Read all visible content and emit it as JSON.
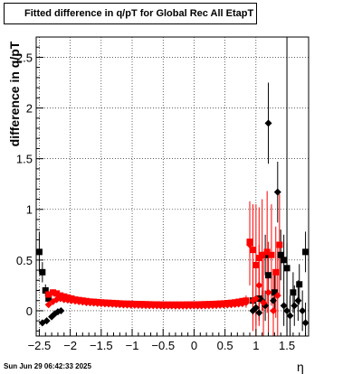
{
  "chart_data": {
    "type": "scatter",
    "title": "Fitted difference in q/pT for Global Rec All EtapT",
    "xlabel": "η",
    "ylabel": "difference in q/pT",
    "xlim": [
      -2.55,
      1.85
    ],
    "ylim": [
      -0.25,
      2.7
    ],
    "xticks": [
      "−2.5",
      "−2",
      "−1.5",
      "−1",
      "−0.5",
      "0",
      "0.5",
      "1",
      "1.5"
    ],
    "xtick_values": [
      -2.5,
      -2,
      -1.5,
      -1,
      -0.5,
      0,
      0.5,
      1,
      1.5
    ],
    "yticks": [
      "0",
      "0.5",
      "1",
      "1.5",
      "2",
      "2.5"
    ],
    "ytick_values": [
      0,
      0.5,
      1,
      1.5,
      2,
      2.5
    ],
    "grid": true,
    "reference_line_x": 1.5,
    "series": [
      {
        "marker": "square",
        "color": "#000000",
        "points": [
          [
            -2.5,
            0.58,
            0.2
          ],
          [
            -2.45,
            0.38,
            0.1
          ],
          [
            -2.4,
            0.2,
            0.06
          ],
          [
            -2.35,
            0.12,
            0.04
          ],
          [
            0.95,
            0.1,
            0.1
          ],
          [
            1.05,
            0.12,
            0.15
          ],
          [
            1.15,
            0.55,
            0.2
          ],
          [
            1.2,
            0.35,
            0.2
          ],
          [
            1.3,
            0.18,
            0.2
          ],
          [
            1.4,
            0.55,
            0.25
          ],
          [
            1.45,
            0.5,
            0.25
          ],
          [
            1.5,
            0.42,
            0.25
          ],
          [
            1.6,
            0.18,
            0.2
          ],
          [
            1.7,
            0.26,
            0.2
          ],
          [
            1.8,
            0.58,
            0.2
          ]
        ]
      },
      {
        "marker": "diamond",
        "color": "#000000",
        "points": [
          [
            -2.45,
            -0.12,
            0.03
          ],
          [
            -2.38,
            -0.1,
            0.03
          ],
          [
            -2.3,
            -0.06,
            0.03
          ],
          [
            -2.25,
            -0.03,
            0.02
          ],
          [
            -2.2,
            -0.01,
            0.02
          ],
          [
            -2.15,
            0.0,
            0.02
          ],
          [
            0.95,
            0.0,
            0.05
          ],
          [
            1.0,
            0.03,
            0.08
          ],
          [
            1.05,
            -0.02,
            0.08
          ],
          [
            1.1,
            0.1,
            0.1
          ],
          [
            1.15,
            0.05,
            0.15
          ],
          [
            1.2,
            1.85,
            0.4
          ],
          [
            1.28,
            0.1,
            0.2
          ],
          [
            1.35,
            1.17,
            0.3
          ],
          [
            1.45,
            0.05,
            0.2
          ],
          [
            1.5,
            0.0,
            0.2
          ],
          [
            1.55,
            -0.05,
            0.2
          ],
          [
            1.62,
            0.05,
            0.2
          ],
          [
            1.68,
            0.1,
            0.2
          ],
          [
            1.75,
            0.0,
            0.2
          ],
          [
            1.8,
            -0.12,
            0.2
          ]
        ]
      },
      {
        "marker": "square",
        "color": "#ff0000",
        "points": [
          [
            -2.35,
            0.16,
            0.03
          ],
          [
            -2.28,
            0.18,
            0.03
          ],
          [
            -2.22,
            0.17,
            0.03
          ],
          [
            -2.16,
            0.15,
            0.02
          ],
          [
            -2.1,
            0.14,
            0.02
          ],
          [
            -2.04,
            0.13,
            0.02
          ],
          [
            -1.98,
            0.12,
            0.02
          ],
          [
            -1.92,
            0.11,
            0.02
          ],
          [
            -1.86,
            0.105,
            0.02
          ],
          [
            -1.8,
            0.1,
            0.02
          ],
          [
            -1.74,
            0.095,
            0.02
          ],
          [
            -1.68,
            0.09,
            0.02
          ],
          [
            -1.62,
            0.088,
            0.02
          ],
          [
            -1.56,
            0.085,
            0.02
          ],
          [
            -1.5,
            0.082,
            0.02
          ],
          [
            -1.44,
            0.08,
            0.02
          ],
          [
            -1.38,
            0.078,
            0.02
          ],
          [
            -1.32,
            0.076,
            0.02
          ],
          [
            -1.26,
            0.074,
            0.02
          ],
          [
            -1.2,
            0.072,
            0.02
          ],
          [
            -1.14,
            0.07,
            0.02
          ],
          [
            -1.08,
            0.069,
            0.02
          ],
          [
            -1.02,
            0.068,
            0.02
          ],
          [
            -0.96,
            0.067,
            0.02
          ],
          [
            -0.9,
            0.066,
            0.02
          ],
          [
            -0.84,
            0.065,
            0.02
          ],
          [
            -0.78,
            0.064,
            0.02
          ],
          [
            -0.72,
            0.063,
            0.02
          ],
          [
            -0.66,
            0.062,
            0.02
          ],
          [
            -0.6,
            0.062,
            0.02
          ],
          [
            -0.54,
            0.061,
            0.02
          ],
          [
            -0.48,
            0.06,
            0.02
          ],
          [
            -0.42,
            0.06,
            0.02
          ],
          [
            -0.36,
            0.06,
            0.02
          ],
          [
            -0.3,
            0.06,
            0.02
          ],
          [
            -0.24,
            0.06,
            0.02
          ],
          [
            -0.18,
            0.06,
            0.02
          ],
          [
            -0.12,
            0.061,
            0.02
          ],
          [
            -0.06,
            0.061,
            0.02
          ],
          [
            0.0,
            0.062,
            0.02
          ],
          [
            0.06,
            0.062,
            0.02
          ],
          [
            0.12,
            0.063,
            0.02
          ],
          [
            0.18,
            0.064,
            0.02
          ],
          [
            0.24,
            0.065,
            0.02
          ],
          [
            0.3,
            0.066,
            0.02
          ],
          [
            0.36,
            0.068,
            0.02
          ],
          [
            0.42,
            0.07,
            0.02
          ],
          [
            0.48,
            0.072,
            0.02
          ],
          [
            0.54,
            0.075,
            0.02
          ],
          [
            0.6,
            0.078,
            0.02
          ],
          [
            0.66,
            0.082,
            0.02
          ],
          [
            0.72,
            0.088,
            0.02
          ],
          [
            0.78,
            0.095,
            0.03
          ],
          [
            0.84,
            0.1,
            0.05
          ],
          [
            0.9,
            0.68,
            0.4
          ],
          [
            0.95,
            0.6,
            0.45
          ],
          [
            1.0,
            0.45,
            0.6
          ],
          [
            1.05,
            0.52,
            0.5
          ],
          [
            1.1,
            0.55,
            0.55
          ],
          [
            1.18,
            0.58,
            0.6
          ],
          [
            1.25,
            0.55,
            0.5
          ],
          [
            1.32,
            0.38,
            0.45
          ],
          [
            1.38,
            0.65,
            0.5
          ]
        ]
      },
      {
        "marker": "diamond",
        "color": "#ff0000",
        "points": [
          [
            -2.35,
            0.06,
            0.03
          ],
          [
            -2.28,
            0.09,
            0.03
          ],
          [
            -2.22,
            0.11,
            0.03
          ],
          [
            -2.16,
            0.12,
            0.02
          ],
          [
            -2.1,
            0.11,
            0.02
          ],
          [
            -2.04,
            0.105,
            0.02
          ],
          [
            -1.98,
            0.1,
            0.02
          ],
          [
            -1.92,
            0.095,
            0.02
          ],
          [
            -1.86,
            0.09,
            0.02
          ],
          [
            -1.8,
            0.085,
            0.02
          ],
          [
            -1.74,
            0.08,
            0.02
          ],
          [
            -1.68,
            0.078,
            0.02
          ],
          [
            -1.62,
            0.075,
            0.02
          ],
          [
            -1.56,
            0.072,
            0.02
          ],
          [
            -1.5,
            0.07,
            0.02
          ],
          [
            -1.44,
            0.068,
            0.02
          ],
          [
            -1.38,
            0.066,
            0.02
          ],
          [
            -1.32,
            0.064,
            0.02
          ],
          [
            -1.26,
            0.062,
            0.02
          ],
          [
            -1.2,
            0.06,
            0.02
          ],
          [
            -1.14,
            0.058,
            0.02
          ],
          [
            -1.08,
            0.056,
            0.02
          ],
          [
            -1.02,
            0.055,
            0.02
          ],
          [
            -0.96,
            0.054,
            0.02
          ],
          [
            -0.9,
            0.053,
            0.02
          ],
          [
            -0.84,
            0.052,
            0.02
          ],
          [
            -0.78,
            0.051,
            0.02
          ],
          [
            -0.72,
            0.05,
            0.02
          ],
          [
            -0.66,
            0.05,
            0.02
          ],
          [
            -0.6,
            0.049,
            0.02
          ],
          [
            -0.54,
            0.048,
            0.02
          ],
          [
            -0.48,
            0.048,
            0.02
          ],
          [
            -0.42,
            0.047,
            0.02
          ],
          [
            -0.36,
            0.047,
            0.02
          ],
          [
            -0.3,
            0.046,
            0.02
          ],
          [
            -0.24,
            0.046,
            0.02
          ],
          [
            -0.18,
            0.046,
            0.02
          ],
          [
            -0.12,
            0.046,
            0.02
          ],
          [
            -0.06,
            0.047,
            0.02
          ],
          [
            0.0,
            0.047,
            0.02
          ],
          [
            0.06,
            0.048,
            0.02
          ],
          [
            0.12,
            0.048,
            0.02
          ],
          [
            0.18,
            0.049,
            0.02
          ],
          [
            0.24,
            0.05,
            0.02
          ],
          [
            0.3,
            0.051,
            0.02
          ],
          [
            0.36,
            0.052,
            0.02
          ],
          [
            0.42,
            0.054,
            0.02
          ],
          [
            0.48,
            0.056,
            0.02
          ],
          [
            0.54,
            0.058,
            0.02
          ],
          [
            0.6,
            0.06,
            0.02
          ],
          [
            0.66,
            0.063,
            0.02
          ],
          [
            0.72,
            0.066,
            0.02
          ],
          [
            0.78,
            0.07,
            0.03
          ],
          [
            0.84,
            0.08,
            0.05
          ],
          [
            0.9,
            0.65,
            0.4
          ],
          [
            0.95,
            0.1,
            0.3
          ],
          [
            1.0,
            0.12,
            0.4
          ],
          [
            1.05,
            0.25,
            0.4
          ],
          [
            1.12,
            0.08,
            0.5
          ],
          [
            1.2,
            0.18,
            0.5
          ],
          [
            1.28,
            0.0,
            0.4
          ],
          [
            1.35,
            0.15,
            0.5
          ]
        ]
      }
    ]
  },
  "footer": {
    "timestamp": "Sun Jun 29 06:42:33 2025"
  }
}
